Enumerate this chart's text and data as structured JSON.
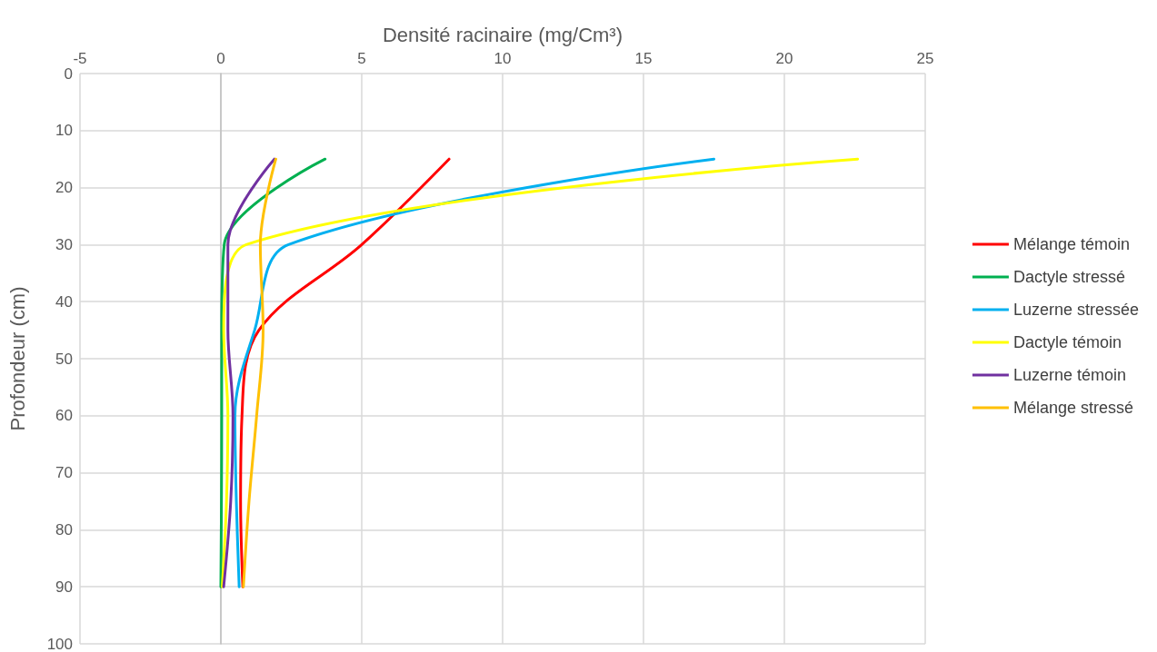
{
  "chart_data": {
    "type": "line",
    "xlabel": "Densité racinaire (mg/Cm³)",
    "ylabel": "Profondeur (cm)",
    "xlim": [
      -5,
      25
    ],
    "xticks": [
      -5,
      0,
      5,
      10,
      15,
      20,
      25
    ],
    "ylim": [
      100,
      0
    ],
    "yticks": [
      0,
      10,
      20,
      30,
      40,
      50,
      60,
      70,
      80,
      90,
      100
    ],
    "grid": true,
    "legend": "right",
    "marker": "none",
    "line_style": "solid",
    "series": [
      {
        "name": "Mélange témoin",
        "color": "#ff0000",
        "x": [
          8.1,
          5.0,
          1.35,
          0.75,
          0.7,
          0.78
        ],
        "values": [
          15,
          30,
          45,
          60,
          75,
          90
        ]
      },
      {
        "name": "Dactyle stressé",
        "color": "#00b050",
        "x": [
          3.7,
          0.12,
          0.03,
          0.03,
          0.02,
          0.0
        ],
        "values": [
          15,
          30,
          45,
          60,
          75,
          90
        ]
      },
      {
        "name": "Luzerne stressée",
        "color": "#00b0f0",
        "x": [
          17.5,
          2.4,
          1.2,
          0.5,
          0.55,
          0.65
        ],
        "values": [
          15,
          30,
          45,
          60,
          75,
          90
        ]
      },
      {
        "name": "Dactyle témoin",
        "color": "#ffff00",
        "x": [
          22.6,
          0.9,
          0.1,
          0.25,
          0.2,
          0.05
        ],
        "values": [
          15,
          30,
          45,
          60,
          75,
          90
        ]
      },
      {
        "name": "Luzerne témoin",
        "color": "#7030a0",
        "x": [
          1.9,
          0.25,
          0.25,
          0.43,
          0.35,
          0.1
        ],
        "values": [
          15,
          30,
          45,
          60,
          75,
          90
        ]
      },
      {
        "name": "Mélange stressé",
        "color": "#ffc000",
        "x": [
          1.95,
          1.4,
          1.5,
          1.27,
          1.0,
          0.8
        ],
        "values": [
          15,
          30,
          45,
          60,
          75,
          90
        ]
      }
    ]
  }
}
